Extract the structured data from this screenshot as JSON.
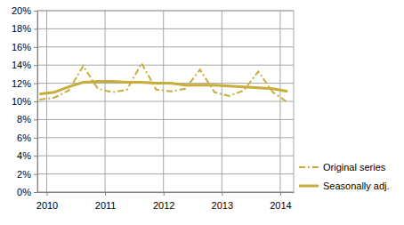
{
  "chart_data": {
    "type": "line",
    "x": [
      2009.875,
      2010.125,
      2010.375,
      2010.625,
      2010.875,
      2011.125,
      2011.375,
      2011.625,
      2011.875,
      2012.125,
      2012.375,
      2012.625,
      2012.875,
      2013.125,
      2013.375,
      2013.625,
      2013.875,
      2014.125
    ],
    "series": [
      {
        "name": "Original series",
        "color": "#c9ad3a",
        "line_style": "dashdot",
        "values": [
          10.2,
          10.4,
          11.2,
          13.9,
          11.4,
          11.0,
          11.3,
          14.2,
          11.3,
          11.1,
          11.4,
          13.5,
          11.0,
          10.6,
          11.2,
          13.3,
          11.0,
          9.9
        ]
      },
      {
        "name": "Seasonally adj.",
        "color": "#c9ad3a",
        "line_style": "solid",
        "values": [
          10.8,
          11.0,
          11.6,
          12.1,
          12.2,
          12.2,
          12.1,
          12.1,
          12.0,
          12.0,
          11.8,
          11.8,
          11.8,
          11.7,
          11.6,
          11.5,
          11.4,
          11.1
        ]
      }
    ],
    "xlim": [
      2009.84,
      2014.23
    ],
    "xticks": [
      2010,
      2011,
      2012,
      2013,
      2014
    ],
    "ylim": [
      0,
      20
    ],
    "yticks": [
      {
        "value": 0,
        "label": "0%"
      },
      {
        "value": 2,
        "label": "2%"
      },
      {
        "value": 4,
        "label": "4%"
      },
      {
        "value": 6,
        "label": "6%"
      },
      {
        "value": 8,
        "label": "8%"
      },
      {
        "value": 10,
        "label": "10%"
      },
      {
        "value": 12,
        "label": "12%"
      },
      {
        "value": 14,
        "label": "14%"
      },
      {
        "value": 16,
        "label": "16%"
      },
      {
        "value": 18,
        "label": "18%"
      },
      {
        "value": 20,
        "label": "20%"
      }
    ],
    "grid": true,
    "legend": "right"
  }
}
